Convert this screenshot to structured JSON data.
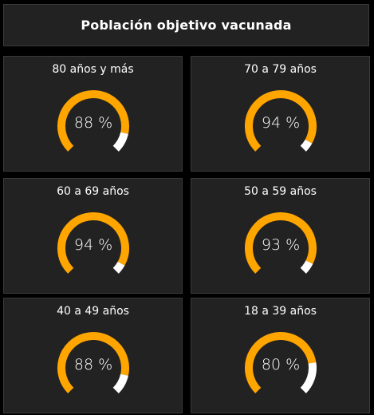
{
  "header": {
    "title": "Población objetivo vacunada"
  },
  "colors": {
    "fill": "#FFA500",
    "remainder": "#FFFFFF",
    "card": "#222222",
    "page": "#000000"
  },
  "cards": [
    {
      "label": "80 años y más",
      "value_text": "88 %",
      "percent": 88
    },
    {
      "label": "70 a 79 años",
      "value_text": "94 %",
      "percent": 94
    },
    {
      "label": "60 a 69 años",
      "value_text": "94 %",
      "percent": 94
    },
    {
      "label": "50 a 59 años",
      "value_text": "93 %",
      "percent": 93
    },
    {
      "label": "40 a 49 años",
      "value_text": "88 %",
      "percent": 88
    },
    {
      "label": "18 a 39 años",
      "value_text": "80 %",
      "percent": 80
    }
  ]
}
